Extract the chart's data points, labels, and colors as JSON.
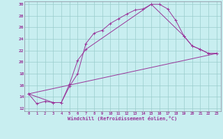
{
  "xlabel": "Windchill (Refroidissement éolien,°C)",
  "bg_color": "#c8eef0",
  "line_color": "#993399",
  "grid_color": "#99cccc",
  "xlim": [
    -0.5,
    23.5
  ],
  "ylim": [
    11.5,
    30.5
  ],
  "yticks": [
    12,
    14,
    16,
    18,
    20,
    22,
    24,
    26,
    28,
    30
  ],
  "xticks": [
    0,
    1,
    2,
    3,
    4,
    5,
    6,
    7,
    8,
    9,
    10,
    11,
    12,
    13,
    14,
    15,
    16,
    17,
    18,
    19,
    20,
    21,
    22,
    23
  ],
  "series1": [
    [
      0,
      14.5
    ],
    [
      1,
      12.8
    ],
    [
      2,
      13.2
    ],
    [
      3,
      13.0
    ],
    [
      4,
      13.0
    ],
    [
      5,
      15.8
    ],
    [
      6,
      18.0
    ],
    [
      7,
      23.2
    ],
    [
      8,
      25.0
    ],
    [
      9,
      25.5
    ],
    [
      10,
      26.7
    ],
    [
      11,
      27.5
    ],
    [
      12,
      28.3
    ],
    [
      13,
      29.0
    ],
    [
      14,
      29.2
    ],
    [
      15,
      30.0
    ],
    [
      16,
      30.0
    ],
    [
      17,
      29.2
    ],
    [
      18,
      27.2
    ],
    [
      19,
      24.5
    ],
    [
      20,
      22.8
    ],
    [
      21,
      22.2
    ],
    [
      22,
      21.5
    ],
    [
      23,
      21.5
    ]
  ],
  "series2": [
    [
      0,
      14.5
    ],
    [
      3,
      13.0
    ],
    [
      4,
      13.0
    ],
    [
      5,
      16.2
    ],
    [
      6,
      20.3
    ],
    [
      7,
      22.2
    ],
    [
      15,
      30.0
    ],
    [
      19,
      24.5
    ],
    [
      20,
      22.8
    ],
    [
      21,
      22.2
    ],
    [
      22,
      21.5
    ],
    [
      23,
      21.5
    ]
  ],
  "series3": [
    [
      0,
      14.5
    ],
    [
      23,
      21.5
    ]
  ]
}
